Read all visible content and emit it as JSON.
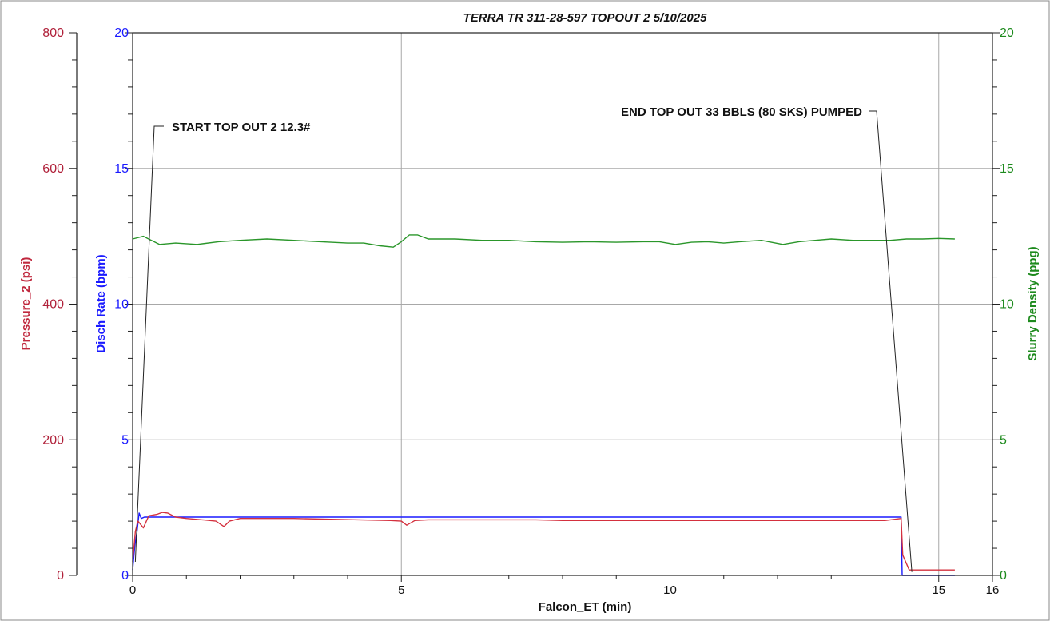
{
  "chart_data": {
    "type": "line",
    "title": "TERRA TR 311-28-597 TOPOUT 2 5/10/2025",
    "xlabel": "Falcon_ET (min)",
    "xlim": [
      0,
      16
    ],
    "x_ticks": [
      "0",
      "5",
      "10",
      "15",
      "16"
    ],
    "axes": {
      "pressure": {
        "label": "Pressure_2 (psi)",
        "range": [
          0,
          800
        ],
        "ticks": [
          "0",
          "200",
          "400",
          "600",
          "800"
        ],
        "color": "#b0213a"
      },
      "rate": {
        "label": "Disch Rate (bpm)",
        "range": [
          0,
          20
        ],
        "ticks": [
          "0",
          "5",
          "10",
          "15",
          "20"
        ],
        "color": "#1a1aff"
      },
      "density": {
        "label": "Slurry Density (ppg)",
        "range": [
          0,
          20
        ],
        "ticks": [
          "0",
          "5",
          "10",
          "15",
          "20"
        ],
        "color": "#1d8a1d"
      }
    },
    "grid": true,
    "series": [
      {
        "name": "Slurry Density (ppg)",
        "axis": "density",
        "color": "#2a962a",
        "x": [
          0.0,
          0.2,
          0.35,
          0.5,
          0.8,
          1.2,
          1.6,
          2.0,
          2.5,
          3.0,
          3.5,
          4.0,
          4.3,
          4.6,
          4.85,
          5.0,
          5.15,
          5.3,
          5.5,
          6.0,
          6.5,
          7.0,
          7.5,
          8.0,
          8.5,
          9.0,
          9.5,
          9.8,
          10.1,
          10.4,
          10.7,
          11.0,
          11.3,
          11.7,
          12.1,
          12.4,
          12.7,
          13.0,
          13.4,
          13.8,
          14.1,
          14.4,
          14.7,
          15.0,
          15.3
        ],
        "y": [
          12.4,
          12.5,
          12.35,
          12.2,
          12.25,
          12.2,
          12.3,
          12.35,
          12.4,
          12.35,
          12.3,
          12.25,
          12.25,
          12.15,
          12.1,
          12.3,
          12.55,
          12.55,
          12.4,
          12.4,
          12.35,
          12.35,
          12.3,
          12.28,
          12.3,
          12.28,
          12.3,
          12.3,
          12.2,
          12.28,
          12.3,
          12.25,
          12.3,
          12.35,
          12.2,
          12.3,
          12.35,
          12.4,
          12.35,
          12.35,
          12.35,
          12.4,
          12.4,
          12.42,
          12.4
        ]
      },
      {
        "name": "Disch Rate (bpm)",
        "axis": "rate",
        "color": "#1a1aff",
        "x": [
          0.0,
          0.04,
          0.08,
          0.12,
          0.16,
          0.22,
          0.3,
          14.3,
          14.32,
          15.3
        ],
        "y": [
          0.2,
          1.1,
          1.6,
          2.3,
          2.1,
          2.15,
          2.15,
          2.15,
          0.0,
          0.0
        ]
      },
      {
        "name": "Pressure_2 (psi)",
        "axis": "pressure",
        "color": "#d4303e",
        "x": [
          0.0,
          0.05,
          0.1,
          0.2,
          0.3,
          0.45,
          0.55,
          0.65,
          0.8,
          1.0,
          1.3,
          1.55,
          1.7,
          1.8,
          2.0,
          2.4,
          3.0,
          3.6,
          4.2,
          4.8,
          5.0,
          5.1,
          5.25,
          5.5,
          6.0,
          6.5,
          7.0,
          7.5,
          8.0,
          8.5,
          9.0,
          9.5,
          10.0,
          10.5,
          11.0,
          11.5,
          12.0,
          12.5,
          13.0,
          13.5,
          14.0,
          14.3,
          14.33,
          14.45,
          14.6,
          15.3
        ],
        "y": [
          20,
          65,
          80,
          70,
          88,
          90,
          93,
          92,
          86,
          84,
          82,
          80,
          72,
          80,
          84,
          84,
          84,
          83,
          82,
          81,
          80,
          74,
          81,
          82,
          82,
          82,
          82,
          82,
          81,
          81,
          81,
          81,
          81,
          81,
          81,
          81,
          81,
          81,
          81,
          81,
          81,
          84,
          30,
          8,
          8,
          8
        ]
      }
    ],
    "annotations": [
      {
        "text": "START TOP OUT 2 12.3#",
        "x": 0.05,
        "y_pressure": 20
      },
      {
        "text": "END TOP OUT 33 BBLS (80 SKS) PUMPED",
        "x": 14.5,
        "y_pressure": 5
      }
    ]
  }
}
